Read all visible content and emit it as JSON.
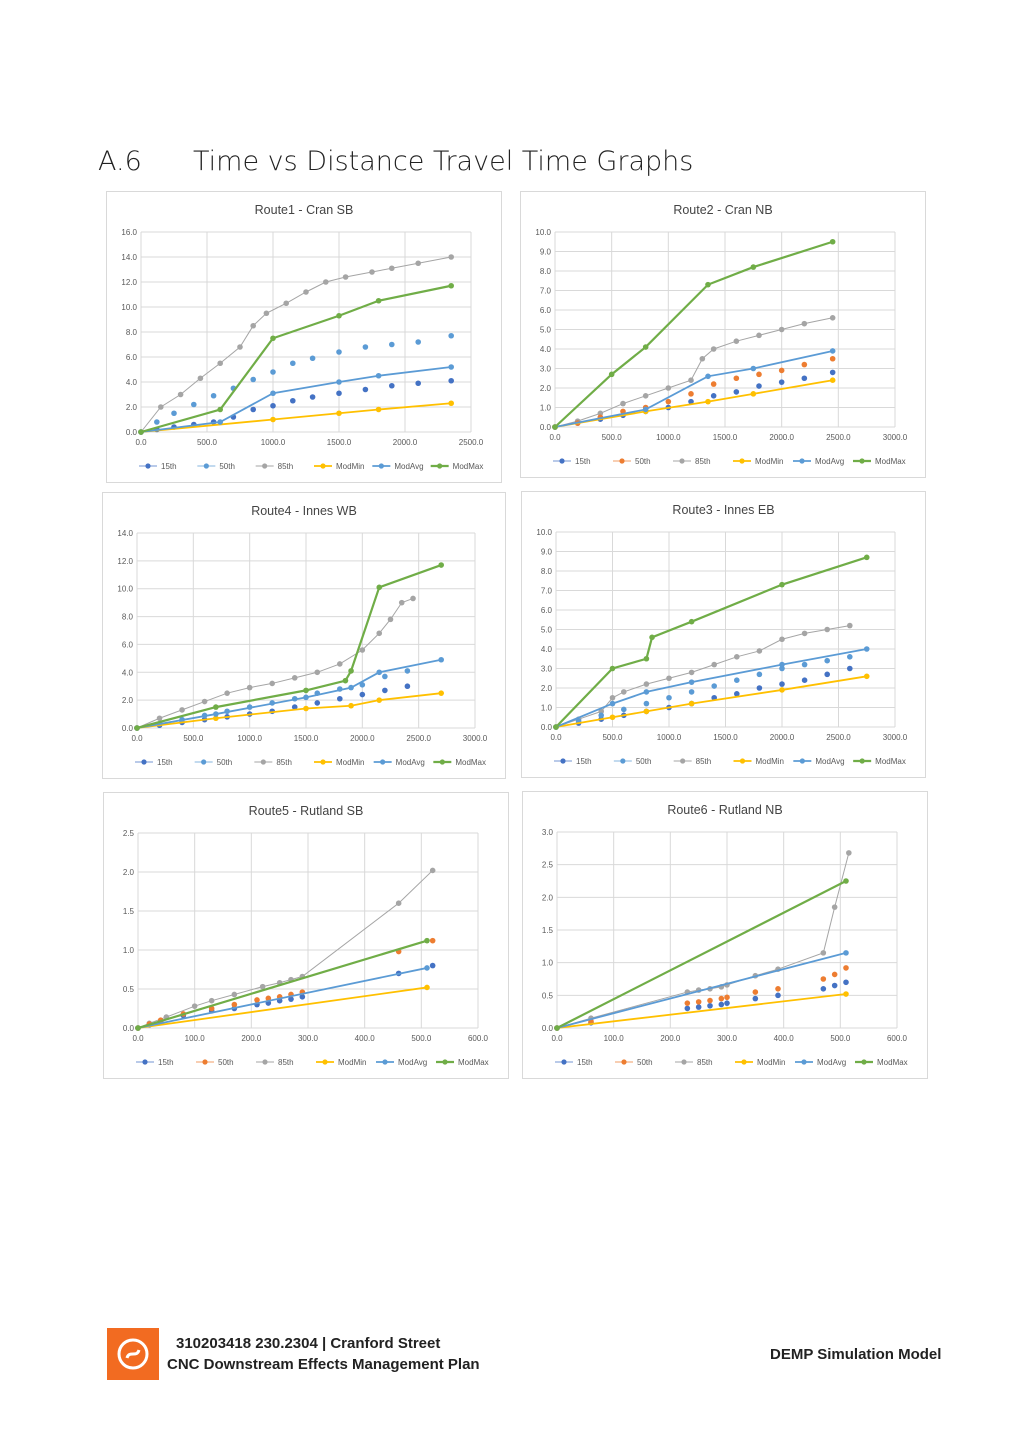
{
  "header": {
    "section_number": "A.6",
    "section_title": "Time vs Distance Travel Time Graphs"
  },
  "footer": {
    "line1": "310203418 230.2304 | Cranford Street",
    "line2": "CNC Downstream Effects Management Plan",
    "right": "DEMP Simulation Model"
  },
  "legend_labels": [
    "15th",
    "50th",
    "85th",
    "ModMin",
    "ModAvg",
    "ModMax"
  ],
  "colors": {
    "p15": "#4472c4",
    "p50": "#5b9bd5",
    "p85": "#a5a5a5",
    "modmin": "#ffc000",
    "modavg": "#5b9bd5",
    "modmax": "#70ad47",
    "alt50": "#ed7d31",
    "grid": "#d9d9d9"
  },
  "chart_data": [
    {
      "type": "line",
      "title": "Route1 - Cran SB",
      "xlim": [
        0,
        2500
      ],
      "ylim": [
        0,
        16
      ],
      "xticks": [
        "0.0",
        "500.0",
        "1000.0",
        "1500.0",
        "2000.0",
        "2500.0"
      ],
      "yticks": [
        "0.0",
        "2.0",
        "4.0",
        "6.0",
        "8.0",
        "10.0",
        "12.0",
        "14.0",
        "16.0"
      ],
      "series": [
        {
          "name": "15th",
          "x": [
            0,
            120,
            250,
            400,
            550,
            700,
            850,
            1000,
            1150,
            1300,
            1500,
            1700,
            1900,
            2100,
            2350
          ],
          "y": [
            0,
            0.2,
            0.4,
            0.6,
            0.8,
            1.2,
            1.8,
            2.1,
            2.5,
            2.8,
            3.1,
            3.4,
            3.7,
            3.9,
            4.1
          ]
        },
        {
          "name": "50th",
          "x": [
            0,
            120,
            250,
            400,
            550,
            700,
            850,
            1000,
            1150,
            1300,
            1500,
            1700,
            1900,
            2100,
            2350
          ],
          "y": [
            0,
            0.8,
            1.5,
            2.2,
            2.9,
            3.5,
            4.2,
            4.8,
            5.5,
            5.9,
            6.4,
            6.8,
            7.0,
            7.2,
            7.7
          ]
        },
        {
          "name": "85th",
          "x": [
            0,
            150,
            300,
            450,
            600,
            750,
            850,
            950,
            1100,
            1250,
            1400,
            1550,
            1750,
            1900,
            2100,
            2350
          ],
          "y": [
            0,
            2,
            3,
            4.3,
            5.5,
            6.8,
            8.5,
            9.5,
            10.3,
            11.2,
            12,
            12.4,
            12.8,
            13.1,
            13.5,
            14
          ]
        },
        {
          "name": "ModMin",
          "x": [
            0,
            1000,
            1500,
            1800,
            2350
          ],
          "y": [
            0,
            1.0,
            1.5,
            1.8,
            2.3
          ]
        },
        {
          "name": "ModAvg",
          "x": [
            0,
            600,
            1000,
            1500,
            1800,
            2350
          ],
          "y": [
            0,
            0.8,
            3.1,
            4.0,
            4.5,
            5.2
          ]
        },
        {
          "name": "ModMax",
          "x": [
            0,
            600,
            1000,
            1500,
            1800,
            2350
          ],
          "y": [
            0,
            1.8,
            7.5,
            9.3,
            10.5,
            11.7
          ]
        }
      ]
    },
    {
      "type": "line",
      "title": "Route2 - Cran NB",
      "xlim": [
        0,
        3000
      ],
      "ylim": [
        0,
        10
      ],
      "xticks": [
        "0.0",
        "500.0",
        "1000.0",
        "1500.0",
        "2000.0",
        "2500.0",
        "3000.0"
      ],
      "yticks": [
        "0.0",
        "1.0",
        "2.0",
        "3.0",
        "4.0",
        "5.0",
        "6.0",
        "7.0",
        "8.0",
        "9.0",
        "10.0"
      ],
      "series": [
        {
          "name": "15th",
          "x": [
            0,
            200,
            400,
            600,
            800,
            1000,
            1200,
            1400,
            1600,
            1800,
            2000,
            2200,
            2450
          ],
          "y": [
            0,
            0.2,
            0.4,
            0.6,
            0.8,
            1.0,
            1.3,
            1.6,
            1.8,
            2.1,
            2.3,
            2.5,
            2.8
          ]
        },
        {
          "name": "50th",
          "x": [
            0,
            200,
            400,
            600,
            800,
            1000,
            1200,
            1400,
            1600,
            1800,
            2000,
            2200,
            2450
          ],
          "y": [
            0,
            0.2,
            0.5,
            0.8,
            1.0,
            1.3,
            1.7,
            2.2,
            2.5,
            2.7,
            2.9,
            3.2,
            3.5
          ]
        },
        {
          "name": "85th",
          "x": [
            0,
            200,
            400,
            600,
            800,
            1000,
            1200,
            1300,
            1400,
            1600,
            1800,
            2000,
            2200,
            2450
          ],
          "y": [
            0,
            0.3,
            0.7,
            1.2,
            1.6,
            2.0,
            2.4,
            3.5,
            4.0,
            4.4,
            4.7,
            5.0,
            5.3,
            5.6
          ]
        },
        {
          "name": "ModMin",
          "x": [
            0,
            800,
            1350,
            1750,
            2450
          ],
          "y": [
            0,
            0.8,
            1.3,
            1.7,
            2.4
          ]
        },
        {
          "name": "ModAvg",
          "x": [
            0,
            800,
            1350,
            1750,
            2450
          ],
          "y": [
            0,
            0.9,
            2.6,
            3.0,
            3.9
          ]
        },
        {
          "name": "ModMax",
          "x": [
            0,
            500,
            800,
            1350,
            1750,
            2450
          ],
          "y": [
            0,
            2.7,
            4.1,
            7.3,
            8.2,
            9.5
          ]
        }
      ]
    },
    {
      "type": "line",
      "title": "Route4 - Innes WB",
      "xlim": [
        0,
        3000
      ],
      "ylim": [
        0,
        14
      ],
      "xticks": [
        "0.0",
        "500.0",
        "1000.0",
        "1500.0",
        "2000.0",
        "2500.0",
        "3000.0"
      ],
      "yticks": [
        "0.0",
        "2.0",
        "4.0",
        "6.0",
        "8.0",
        "10.0",
        "12.0",
        "14.0"
      ],
      "series": [
        {
          "name": "15th",
          "x": [
            0,
            200,
            400,
            600,
            800,
            1000,
            1200,
            1400,
            1600,
            1800,
            2000,
            2200,
            2400
          ],
          "y": [
            0,
            0.2,
            0.4,
            0.6,
            0.8,
            1.0,
            1.2,
            1.5,
            1.8,
            2.1,
            2.4,
            2.7,
            3.0
          ]
        },
        {
          "name": "50th",
          "x": [
            0,
            200,
            400,
            600,
            800,
            1000,
            1200,
            1400,
            1600,
            1800,
            2000,
            2200,
            2400
          ],
          "y": [
            0,
            0.3,
            0.6,
            0.9,
            1.2,
            1.5,
            1.8,
            2.1,
            2.5,
            2.8,
            3.1,
            3.7,
            4.1
          ]
        },
        {
          "name": "85th",
          "x": [
            0,
            200,
            400,
            600,
            800,
            1000,
            1200,
            1400,
            1600,
            1800,
            2000,
            2150,
            2250,
            2350,
            2450
          ],
          "y": [
            0,
            0.7,
            1.3,
            1.9,
            2.5,
            2.9,
            3.2,
            3.6,
            4.0,
            4.6,
            5.6,
            6.8,
            7.8,
            9.0,
            9.3
          ]
        },
        {
          "name": "ModMin",
          "x": [
            0,
            700,
            1500,
            1900,
            2150,
            2700
          ],
          "y": [
            0,
            0.7,
            1.4,
            1.6,
            2.0,
            2.5
          ]
        },
        {
          "name": "ModAvg",
          "x": [
            0,
            700,
            1500,
            1900,
            2150,
            2700
          ],
          "y": [
            0,
            1.0,
            2.2,
            2.9,
            4.0,
            4.9
          ]
        },
        {
          "name": "ModMax",
          "x": [
            0,
            700,
            1500,
            1850,
            1900,
            2150,
            2700
          ],
          "y": [
            0,
            1.5,
            2.7,
            3.4,
            4.1,
            10.1,
            11.7
          ]
        }
      ]
    },
    {
      "type": "line",
      "title": "Route3 - Innes EB",
      "xlim": [
        0,
        3000
      ],
      "ylim": [
        0,
        10
      ],
      "xticks": [
        "0.0",
        "500.0",
        "1000.0",
        "1500.0",
        "2000.0",
        "2500.0",
        "3000.0"
      ],
      "yticks": [
        "0.0",
        "1.0",
        "2.0",
        "3.0",
        "4.0",
        "5.0",
        "6.0",
        "7.0",
        "8.0",
        "9.0",
        "10.0"
      ],
      "series": [
        {
          "name": "15th",
          "x": [
            0,
            200,
            400,
            600,
            800,
            1000,
            1200,
            1400,
            1600,
            1800,
            2000,
            2200,
            2400,
            2600
          ],
          "y": [
            0,
            0.2,
            0.4,
            0.6,
            0.8,
            1.0,
            1.2,
            1.5,
            1.7,
            2.0,
            2.2,
            2.4,
            2.7,
            3.0
          ]
        },
        {
          "name": "50th",
          "x": [
            0,
            200,
            400,
            600,
            800,
            1000,
            1200,
            1400,
            1600,
            1800,
            2000,
            2200,
            2400,
            2600
          ],
          "y": [
            0,
            0.3,
            0.6,
            0.9,
            1.2,
            1.5,
            1.8,
            2.1,
            2.4,
            2.7,
            3.0,
            3.2,
            3.4,
            3.6
          ]
        },
        {
          "name": "85th",
          "x": [
            0,
            200,
            400,
            500,
            600,
            800,
            1000,
            1200,
            1400,
            1600,
            1800,
            2000,
            2200,
            2400,
            2600
          ],
          "y": [
            0,
            0.4,
            0.8,
            1.5,
            1.8,
            2.2,
            2.5,
            2.8,
            3.2,
            3.6,
            3.9,
            4.5,
            4.8,
            5.0,
            5.2
          ]
        },
        {
          "name": "ModMin",
          "x": [
            0,
            500,
            800,
            1200,
            2000,
            2750
          ],
          "y": [
            0,
            0.5,
            0.8,
            1.2,
            1.9,
            2.6
          ]
        },
        {
          "name": "ModAvg",
          "x": [
            0,
            500,
            800,
            1200,
            2000,
            2750
          ],
          "y": [
            0,
            1.2,
            1.8,
            2.3,
            3.2,
            4.0
          ]
        },
        {
          "name": "ModMax",
          "x": [
            0,
            500,
            800,
            850,
            1200,
            2000,
            2750
          ],
          "y": [
            0,
            3.0,
            3.5,
            4.6,
            5.4,
            7.3,
            8.7
          ]
        }
      ]
    },
    {
      "type": "line",
      "title": "Route5 - Rutland SB",
      "xlim": [
        0,
        600
      ],
      "ylim": [
        0,
        2.5
      ],
      "xticks": [
        "0.0",
        "100.0",
        "200.0",
        "300.0",
        "400.0",
        "500.0",
        "600.0"
      ],
      "yticks": [
        "0.0",
        "0.5",
        "1.0",
        "1.5",
        "2.0",
        "2.5"
      ],
      "series": [
        {
          "name": "15th",
          "x": [
            0,
            20,
            40,
            80,
            130,
            170,
            210,
            230,
            250,
            270,
            290,
            460,
            520
          ],
          "y": [
            0,
            0.04,
            0.08,
            0.16,
            0.22,
            0.25,
            0.3,
            0.32,
            0.35,
            0.37,
            0.4,
            0.7,
            0.8
          ]
        },
        {
          "name": "50th",
          "x": [
            0,
            20,
            40,
            80,
            130,
            170,
            210,
            230,
            250,
            270,
            290,
            460,
            520
          ],
          "y": [
            0,
            0.05,
            0.1,
            0.18,
            0.25,
            0.3,
            0.36,
            0.38,
            0.4,
            0.43,
            0.46,
            0.98,
            1.12
          ]
        },
        {
          "name": "85th",
          "x": [
            0,
            20,
            50,
            100,
            130,
            170,
            220,
            250,
            270,
            290,
            460,
            520
          ],
          "y": [
            0,
            0.06,
            0.14,
            0.28,
            0.35,
            0.43,
            0.53,
            0.58,
            0.62,
            0.66,
            1.6,
            2.02
          ]
        },
        {
          "name": "ModMin",
          "x": [
            0,
            510
          ],
          "y": [
            0,
            0.52
          ]
        },
        {
          "name": "ModAvg",
          "x": [
            0,
            510
          ],
          "y": [
            0,
            0.77
          ]
        },
        {
          "name": "ModMax",
          "x": [
            0,
            510
          ],
          "y": [
            0,
            1.12
          ]
        }
      ]
    },
    {
      "type": "line",
      "title": "Route6 - Rutland NB",
      "xlim": [
        0,
        600
      ],
      "ylim": [
        0,
        3.0
      ],
      "xticks": [
        "0.0",
        "100.0",
        "200.0",
        "300.0",
        "400.0",
        "500.0",
        "600.0"
      ],
      "yticks": [
        "0.0",
        "0.5",
        "1.0",
        "1.5",
        "2.0",
        "2.5",
        "3.0"
      ],
      "series": [
        {
          "name": "15th",
          "x": [
            0,
            60,
            230,
            250,
            270,
            290,
            300,
            350,
            390,
            470,
            490,
            510
          ],
          "y": [
            0,
            0.08,
            0.3,
            0.32,
            0.34,
            0.36,
            0.38,
            0.45,
            0.5,
            0.6,
            0.65,
            0.7
          ]
        },
        {
          "name": "50th",
          "x": [
            0,
            60,
            230,
            250,
            270,
            290,
            300,
            350,
            390,
            470,
            490,
            510
          ],
          "y": [
            0,
            0.1,
            0.38,
            0.4,
            0.42,
            0.45,
            0.47,
            0.55,
            0.6,
            0.75,
            0.82,
            0.92
          ]
        },
        {
          "name": "85th",
          "x": [
            0,
            60,
            230,
            250,
            270,
            290,
            300,
            350,
            390,
            470,
            490,
            515
          ],
          "y": [
            0,
            0.15,
            0.55,
            0.58,
            0.6,
            0.63,
            0.66,
            0.8,
            0.9,
            1.15,
            1.85,
            2.68
          ]
        },
        {
          "name": "ModMin",
          "x": [
            0,
            510
          ],
          "y": [
            0,
            0.52
          ]
        },
        {
          "name": "ModAvg",
          "x": [
            0,
            510
          ],
          "y": [
            0,
            1.15
          ]
        },
        {
          "name": "ModMax",
          "x": [
            0,
            510
          ],
          "y": [
            0,
            2.25
          ]
        }
      ]
    }
  ]
}
